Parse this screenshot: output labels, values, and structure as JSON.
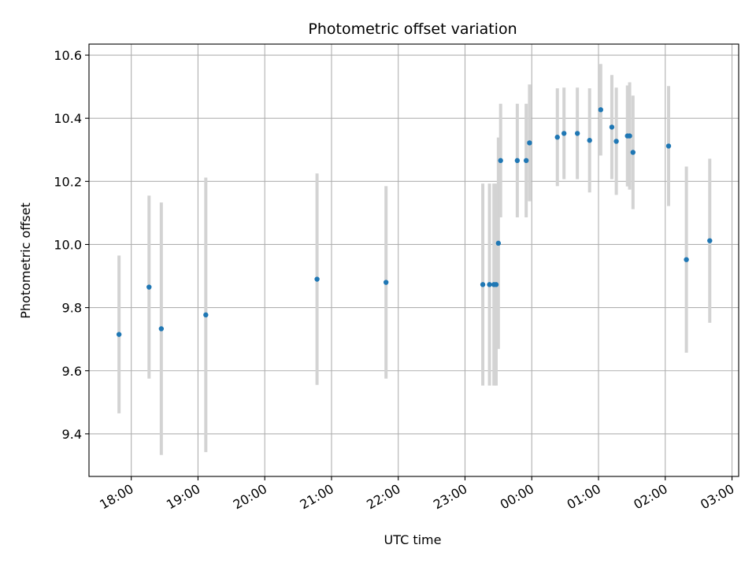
{
  "chart_data": {
    "type": "scatter",
    "title": "Photometric offset variation",
    "xlabel": "UTC time",
    "ylabel": "Photometric offset",
    "x_axis_type": "time",
    "xlim": [
      "17:22",
      "03:06"
    ],
    "ylim": [
      9.265,
      10.635
    ],
    "grid": true,
    "x_ticks": [
      "18:00",
      "19:00",
      "20:00",
      "21:00",
      "22:00",
      "23:00",
      "00:00",
      "01:00",
      "02:00",
      "03:00"
    ],
    "y_ticks": [
      9.4,
      9.6,
      9.8,
      10.0,
      10.2,
      10.4,
      10.6
    ],
    "y_tick_labels": [
      "9.4",
      "9.6",
      "9.8",
      "10.0",
      "10.2",
      "10.4",
      "10.6"
    ],
    "point_color": "#1f77b4",
    "errorbar_color": "#d3d3d3",
    "points": [
      {
        "x": "17:49",
        "y": 9.715,
        "yerr": 0.25
      },
      {
        "x": "18:16",
        "y": 9.865,
        "yerr": 0.29
      },
      {
        "x": "18:27",
        "y": 9.733,
        "yerr": 0.4
      },
      {
        "x": "19:07",
        "y": 9.777,
        "yerr": 0.435
      },
      {
        "x": "20:47",
        "y": 9.89,
        "yerr": 0.335
      },
      {
        "x": "21:49",
        "y": 9.88,
        "yerr": 0.305
      },
      {
        "x": "23:16",
        "y": 9.873,
        "yerr": 0.32
      },
      {
        "x": "23:22",
        "y": 9.873,
        "yerr": 0.32
      },
      {
        "x": "23:26",
        "y": 9.873,
        "yerr": 0.32
      },
      {
        "x": "23:28",
        "y": 9.873,
        "yerr": 0.32
      },
      {
        "x": "23:30",
        "y": 10.004,
        "yerr": 0.335
      },
      {
        "x": "23:32",
        "y": 10.266,
        "yerr": 0.18
      },
      {
        "x": "23:47",
        "y": 10.266,
        "yerr": 0.18
      },
      {
        "x": "23:55",
        "y": 10.266,
        "yerr": 0.18
      },
      {
        "x": "23:58",
        "y": 10.322,
        "yerr": 0.185
      },
      {
        "x": "00:23",
        "y": 10.34,
        "yerr": 0.155
      },
      {
        "x": "00:29",
        "y": 10.352,
        "yerr": 0.145
      },
      {
        "x": "00:41",
        "y": 10.352,
        "yerr": 0.145
      },
      {
        "x": "00:52",
        "y": 10.33,
        "yerr": 0.165
      },
      {
        "x": "01:02",
        "y": 10.427,
        "yerr": 0.145
      },
      {
        "x": "01:12",
        "y": 10.372,
        "yerr": 0.165
      },
      {
        "x": "01:16",
        "y": 10.327,
        "yerr": 0.17
      },
      {
        "x": "01:26",
        "y": 10.344,
        "yerr": 0.16
      },
      {
        "x": "01:28",
        "y": 10.344,
        "yerr": 0.17
      },
      {
        "x": "01:31",
        "y": 10.292,
        "yerr": 0.18
      },
      {
        "x": "02:03",
        "y": 10.312,
        "yerr": 0.19
      },
      {
        "x": "02:19",
        "y": 9.952,
        "yerr": 0.295
      },
      {
        "x": "02:40",
        "y": 10.012,
        "yerr": 0.26
      }
    ]
  }
}
